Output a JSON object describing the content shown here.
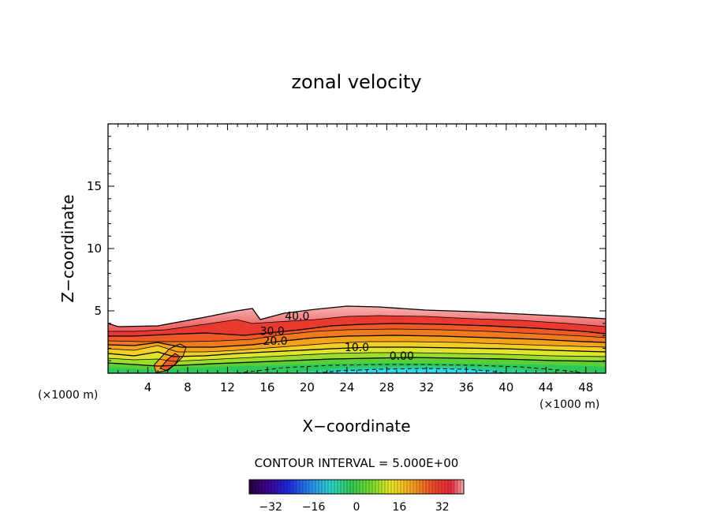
{
  "chart_data": {
    "type": "contour",
    "title": "zonal velocity",
    "xlabel": "X−coordinate",
    "ylabel": "Z−coordinate",
    "x_unit_left": "(×1000 m)",
    "x_unit_right": "(×1000 m)",
    "xlim": [
      0,
      50
    ],
    "ylim": [
      0,
      20
    ],
    "x_ticks": [
      4,
      8,
      12,
      16,
      20,
      24,
      28,
      32,
      36,
      40,
      44,
      48
    ],
    "x_tick_labels": [
      "4",
      "8",
      "12",
      "16",
      "20",
      "24",
      "28",
      "32",
      "36",
      "40",
      "44",
      "48"
    ],
    "y_ticks": [
      5,
      10,
      15
    ],
    "y_tick_labels": [
      "5",
      "10",
      "15"
    ],
    "contour_labels": [
      {
        "text": "40.0",
        "x": 19.0,
        "z": 4.6
      },
      {
        "text": "30.0",
        "x": 16.5,
        "z": 3.4
      },
      {
        "text": "20.0",
        "x": 16.8,
        "z": 2.6
      },
      {
        "text": "10.0",
        "x": 25.0,
        "z": 2.1
      },
      {
        "text": "0.00",
        "x": 29.5,
        "z": 1.4
      }
    ],
    "contour_interval_text": "CONTOUR INTERVAL = 5.000E+00",
    "colorbar": {
      "range": [
        -40,
        40
      ],
      "tick_values": [
        -32,
        -16,
        0,
        16,
        32
      ],
      "tick_labels": [
        "−32",
        "−16",
        "0",
        "16",
        "32"
      ]
    },
    "colors": {
      "red": "#e8262a",
      "orange": "#f07a1e",
      "yellow": "#f0e22a",
      "green": "#3ec93e",
      "cyan": "#34d8e8"
    }
  }
}
